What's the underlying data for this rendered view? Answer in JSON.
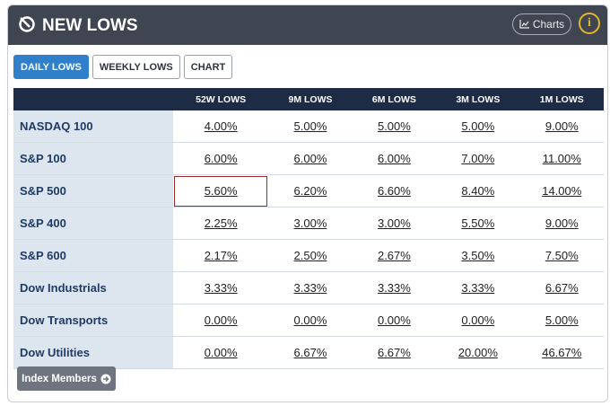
{
  "header": {
    "title": "NEW LOWS",
    "charts_button": "Charts",
    "info_icon": "i"
  },
  "tabs": [
    "DAILY LOWS",
    "WEEKLY LOWS",
    "CHART"
  ],
  "table": {
    "columns": [
      "52W LOWS",
      "9M LOWS",
      "6M LOWS",
      "3M LOWS",
      "1M LOWS"
    ],
    "rows": [
      {
        "label": "NASDAQ 100",
        "values": [
          "4.00%",
          "5.00%",
          "5.00%",
          "5.00%",
          "9.00%"
        ]
      },
      {
        "label": "S&P 100",
        "values": [
          "6.00%",
          "6.00%",
          "6.00%",
          "7.00%",
          "11.00%"
        ]
      },
      {
        "label": "S&P 500",
        "values": [
          "5.60%",
          "6.20%",
          "6.60%",
          "8.40%",
          "14.00%"
        ]
      },
      {
        "label": "S&P 400",
        "values": [
          "2.25%",
          "3.00%",
          "3.00%",
          "5.50%",
          "9.00%"
        ]
      },
      {
        "label": "S&P 600",
        "values": [
          "2.17%",
          "2.50%",
          "2.67%",
          "3.50%",
          "7.50%"
        ]
      },
      {
        "label": "Dow Industrials",
        "values": [
          "3.33%",
          "3.33%",
          "3.33%",
          "3.33%",
          "6.67%"
        ]
      },
      {
        "label": "Dow Transports",
        "values": [
          "0.00%",
          "0.00%",
          "0.00%",
          "0.00%",
          "5.00%"
        ]
      },
      {
        "label": "Dow Utilities",
        "values": [
          "0.00%",
          "6.67%",
          "6.67%",
          "20.00%",
          "46.67%"
        ]
      }
    ]
  },
  "footer_button": "Index Members"
}
